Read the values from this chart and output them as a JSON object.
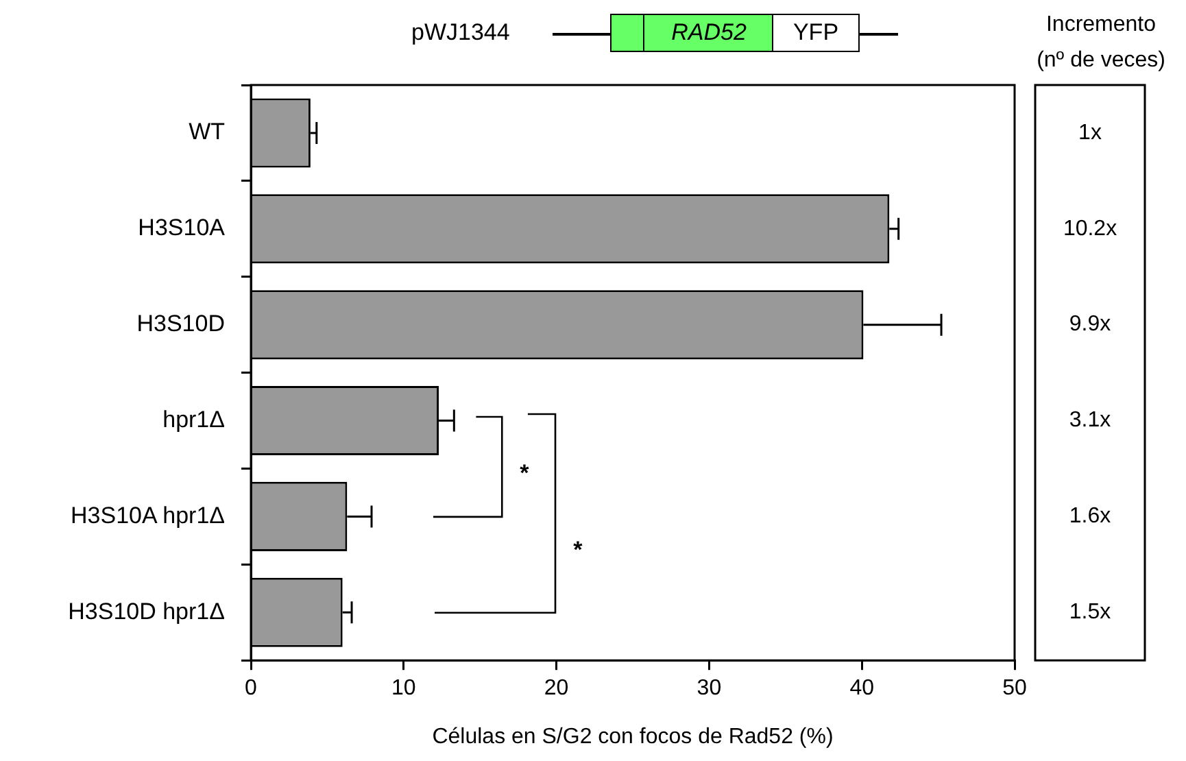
{
  "chart_data": {
    "type": "bar",
    "orientation": "horizontal",
    "xlabel": "Células en S/G2 con focos de Rad52 (%)",
    "categories": [
      "WT",
      "H3S10A",
      "H3S10D",
      "hpr1Δ",
      "H3S10A hpr1Δ",
      "H3S10D hpr1Δ"
    ],
    "values": [
      3.9,
      41.8,
      40.1,
      12.3,
      6.3,
      6.0
    ],
    "errors": [
      0.4,
      0.6,
      5.1,
      1.0,
      1.6,
      0.6
    ],
    "color": "#999999",
    "xlim": [
      0,
      50
    ],
    "xticks": [
      0,
      10,
      20,
      30,
      40,
      50
    ],
    "grid": false,
    "legend": false,
    "annotations": [
      "pWJ1344",
      "RAD52",
      "YFP",
      "Incremento",
      "(nº de veces)",
      "1x",
      "10.2x",
      "9.9x",
      "3.1x",
      "1.6x",
      "1.5x",
      "*",
      "*"
    ]
  }
}
